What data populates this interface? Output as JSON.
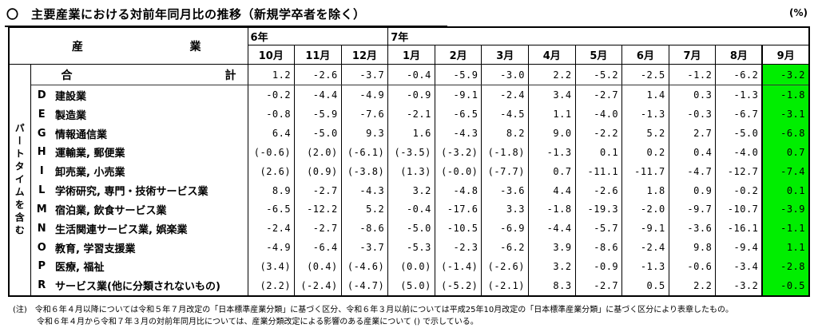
{
  "title": "〇　主要産業における対前年同月比の推移（新規学卒者を除く）",
  "unit_label": "(%)",
  "table": {
    "industry_header": {
      "left": "産",
      "right": "業"
    },
    "year_groups": [
      {
        "label": "6年",
        "colspan": 3
      },
      {
        "label": "7年",
        "colspan": 9
      }
    ],
    "months": [
      "10月",
      "11月",
      "12月",
      "1月",
      "2月",
      "3月",
      "4月",
      "5月",
      "6月",
      "7月",
      "8月",
      "9月"
    ],
    "side_label": "パートタイムを含む",
    "highlight_color": "#00ee00",
    "total_row": {
      "label_left": "合",
      "label_right": "計",
      "values": [
        "1.2",
        "-2.6",
        "-3.7",
        "-0.4",
        "-5.9",
        "-3.0",
        "2.2",
        "-5.2",
        "-2.5",
        "-1.2",
        "-6.2",
        "-3.2"
      ]
    },
    "rows": [
      {
        "code": "D",
        "name": "建設業",
        "values": [
          "-0.2",
          "-4.4",
          "-4.9",
          "-0.9",
          "-9.1",
          "-2.4",
          "3.4",
          "-2.7",
          "1.4",
          "0.3",
          "-1.3",
          "-1.8"
        ]
      },
      {
        "code": "E",
        "name": "製造業",
        "values": [
          "-0.8",
          "-5.9",
          "-7.6",
          "-2.1",
          "-6.5",
          "-4.5",
          "1.1",
          "-4.0",
          "-1.3",
          "-0.3",
          "-6.7",
          "-3.1"
        ]
      },
      {
        "code": "G",
        "name": "情報通信業",
        "values": [
          "6.4",
          "-5.0",
          "9.3",
          "1.6",
          "-4.3",
          "8.2",
          "9.0",
          "-2.2",
          "5.2",
          "2.7",
          "-5.0",
          "-6.8"
        ]
      },
      {
        "code": "H",
        "name": "運輸業, 郵便業",
        "values": [
          "(-0.6)",
          "(2.0)",
          "(-6.1)",
          "(-3.5)",
          "(-3.2)",
          "(-1.8)",
          "-1.3",
          "0.1",
          "0.2",
          "0.4",
          "-4.0",
          "0.7"
        ]
      },
      {
        "code": "I",
        "name": "卸売業, 小売業",
        "values": [
          "(2.6)",
          "(0.9)",
          "(-3.8)",
          "(1.3)",
          "(-0.0)",
          "(-7.7)",
          "0.7",
          "-11.1",
          "-11.7",
          "-4.7",
          "-12.7",
          "-7.4"
        ]
      },
      {
        "code": "L",
        "name": "学術研究, 専門・技術サービス業",
        "values": [
          "8.9",
          "-2.7",
          "-4.3",
          "3.2",
          "-4.8",
          "-3.6",
          "4.4",
          "-2.6",
          "1.8",
          "0.9",
          "-0.2",
          "0.1"
        ]
      },
      {
        "code": "M",
        "name": "宿泊業, 飲食サービス業",
        "values": [
          "-6.5",
          "-12.2",
          "5.2",
          "-0.4",
          "-17.6",
          "3.3",
          "-1.8",
          "-19.3",
          "-2.0",
          "-9.7",
          "-10.7",
          "-3.9"
        ]
      },
      {
        "code": "N",
        "name": "生活関連サービス業, 娯楽業",
        "values": [
          "-2.4",
          "-2.7",
          "-8.6",
          "-5.0",
          "-10.5",
          "-6.9",
          "-4.4",
          "-5.7",
          "-9.1",
          "-3.6",
          "-16.1",
          "-1.1"
        ]
      },
      {
        "code": "O",
        "name": "教育, 学習支援業",
        "values": [
          "-4.9",
          "-6.4",
          "-3.7",
          "-5.3",
          "-2.3",
          "-6.2",
          "3.9",
          "-8.6",
          "-2.4",
          "9.8",
          "-9.4",
          "1.1"
        ]
      },
      {
        "code": "P",
        "name": "医療, 福祉",
        "values": [
          "(3.4)",
          "(0.4)",
          "(-4.6)",
          "(0.0)",
          "(-1.4)",
          "(-2.6)",
          "3.2",
          "-0.9",
          "-1.3",
          "-0.6",
          "-3.4",
          "-2.8"
        ]
      },
      {
        "code": "R",
        "name": "サービス業(他に分類されないもの)",
        "values": [
          "(2.2)",
          "(-2.4)",
          "(-4.7)",
          "(5.0)",
          "(-5.2)",
          "(-2.1)",
          "8.3",
          "-2.7",
          "0.5",
          "2.2",
          "-3.2",
          "-0.5"
        ]
      }
    ]
  },
  "notes": [
    "(注)　令和６年４月以降については令和５年７月改定の「日本標準産業分類」に基づく区分、令和６年３月以前については平成25年10月改定の「日本標準産業分類」に基づく区分により表章したもの。",
    "令和６年４月から令和７年３月の対前年同月比については、産業分類改定による影響のある産業について () で示している。"
  ]
}
